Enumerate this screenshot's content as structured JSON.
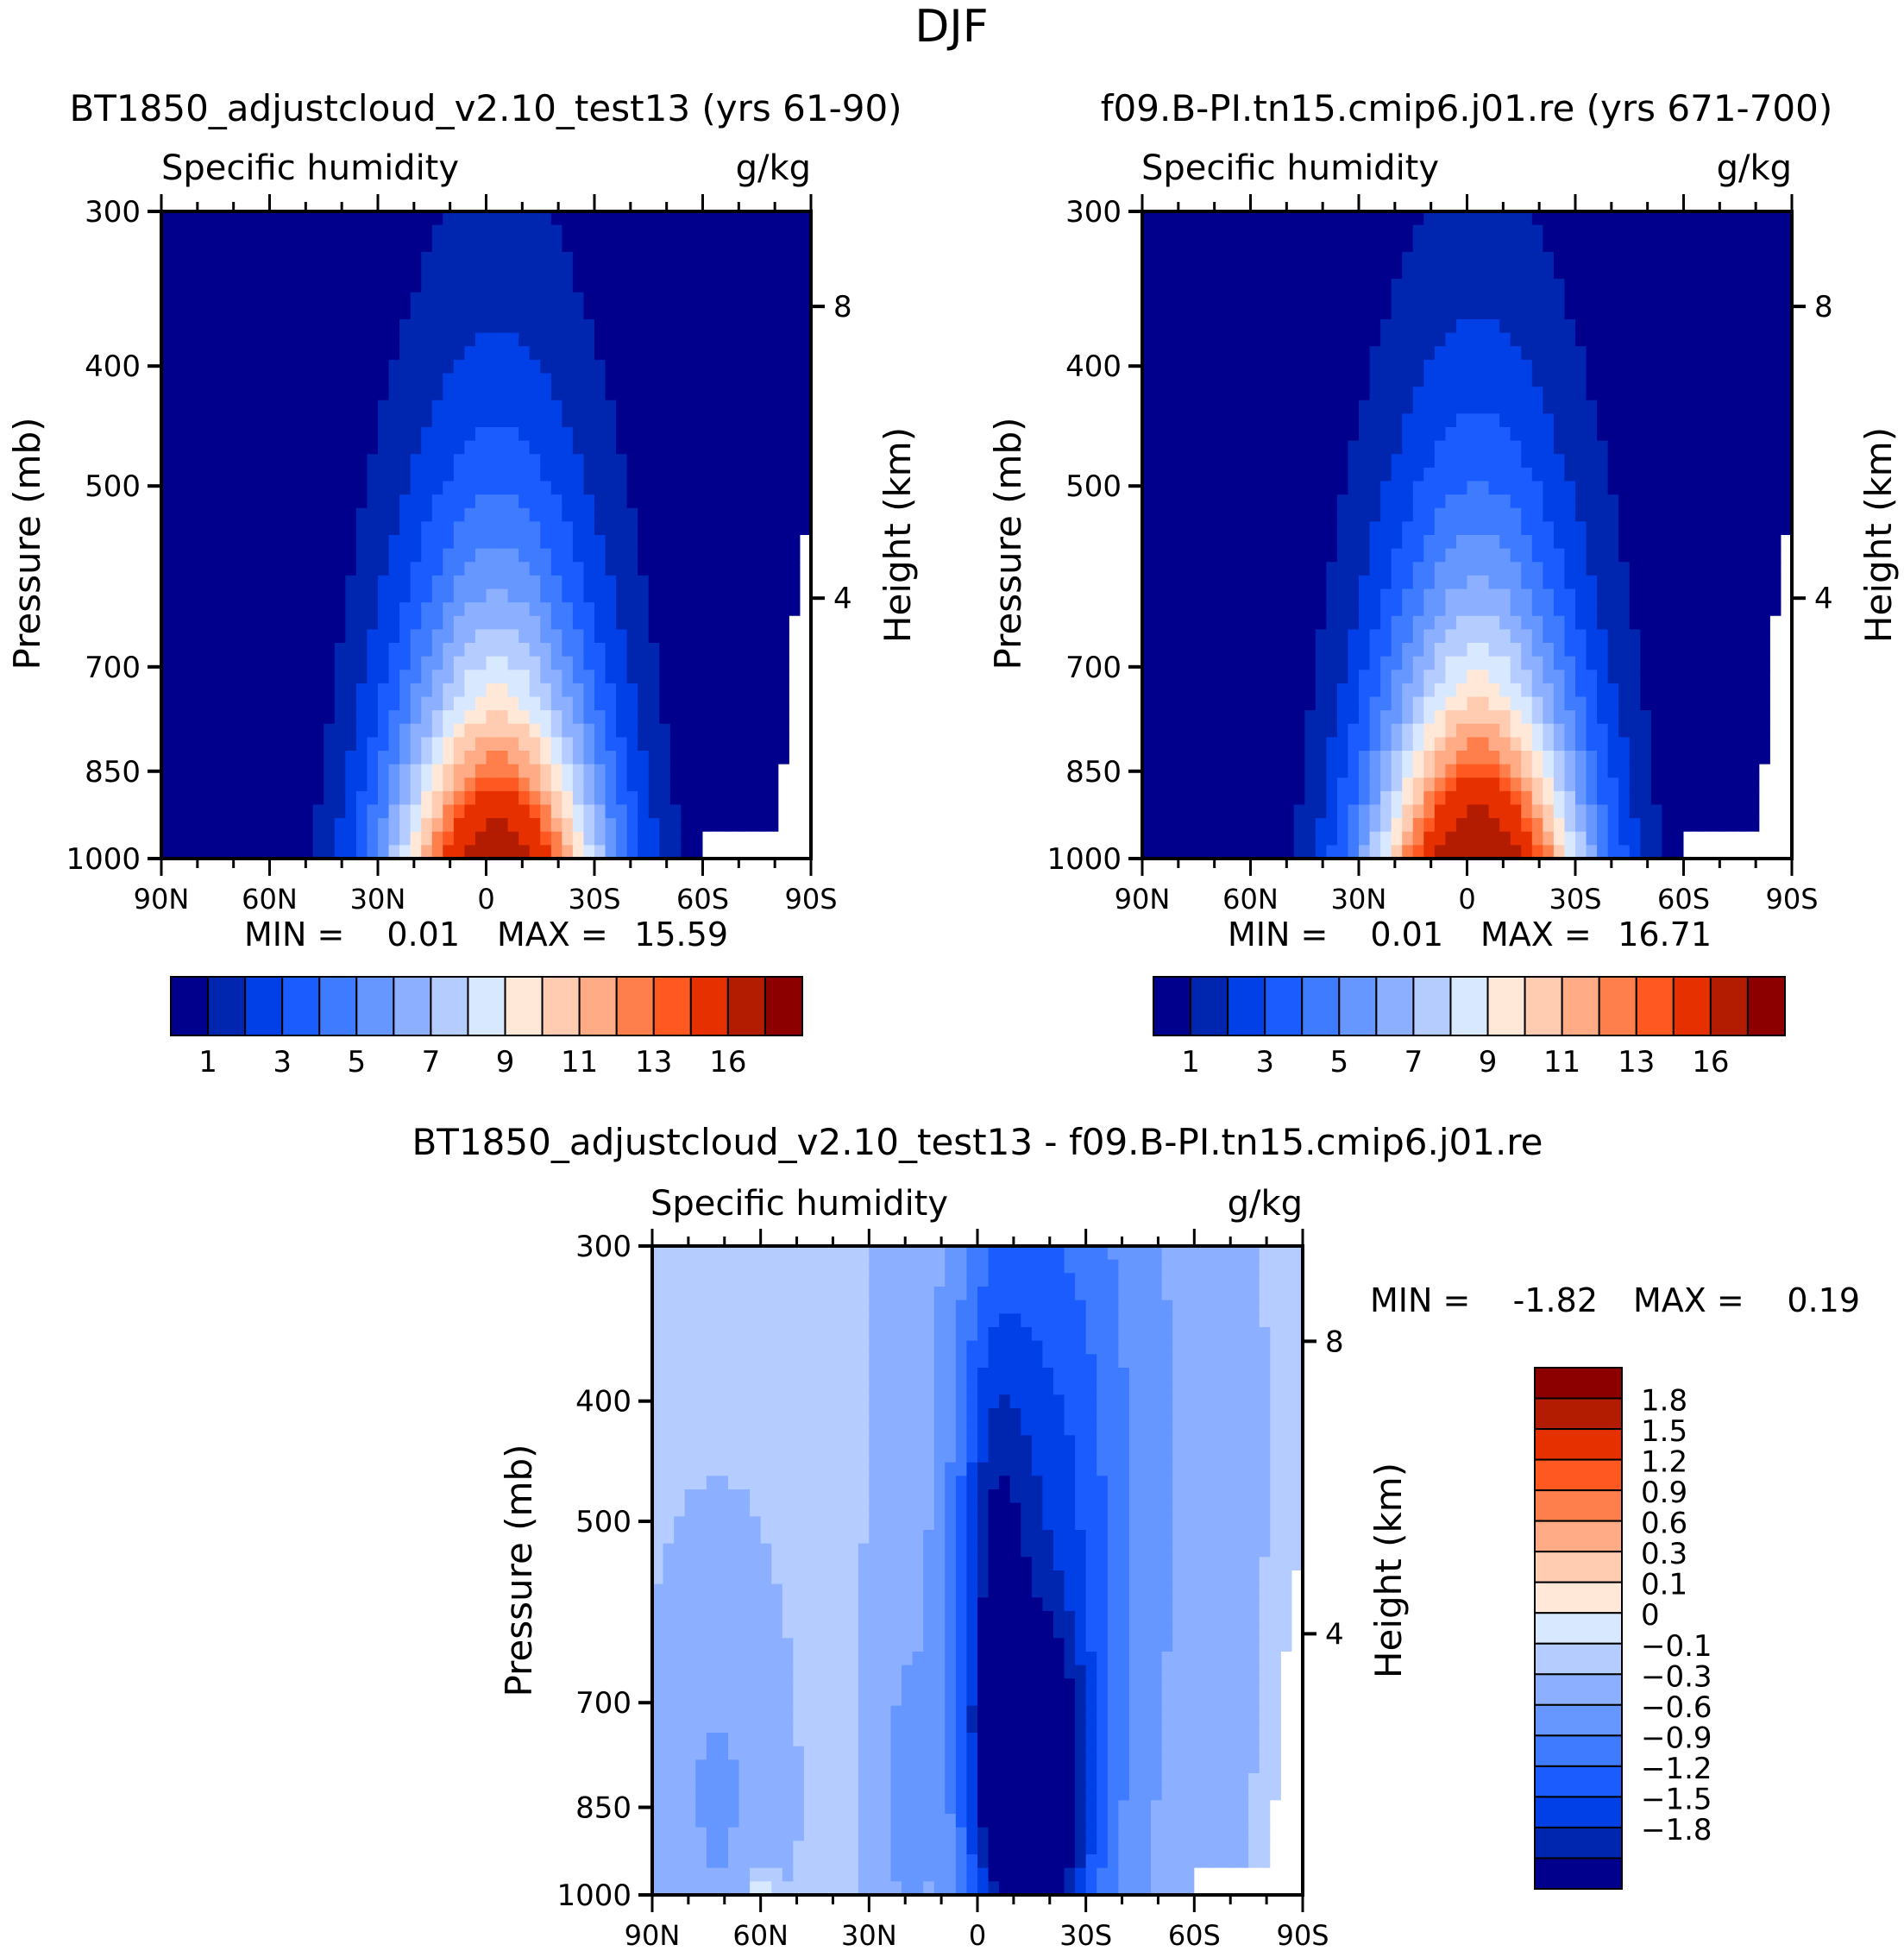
{
  "figure": {
    "title": "DJF"
  },
  "chart_data": [
    {
      "id": "left",
      "type": "contour",
      "case_title": "BT1850_adjustcloud_v2.10_test13 (yrs 61-90)",
      "variable": "Specific humidity",
      "units": "g/kg",
      "ylabel": "Pressure (mb)",
      "y2label": "Height (km)",
      "yticks": [
        "300",
        "400",
        "500",
        "700",
        "850",
        "1000"
      ],
      "y2ticks": [
        "8",
        "4"
      ],
      "xticks": [
        "90N",
        "60N",
        "30N",
        "0",
        "30S",
        "60S",
        "90S"
      ],
      "min_label": "MIN =",
      "min_value": "0.01",
      "max_label": "MAX =",
      "max_value": "15.59",
      "contour_levels": [
        0,
        1,
        2,
        3,
        4,
        5,
        6,
        7,
        8,
        9,
        10,
        11,
        12,
        13,
        14,
        16,
        99
      ],
      "colorbar_labels": [
        "1",
        "3",
        "5",
        "7",
        "9",
        "11",
        "13",
        "16"
      ],
      "peak_value": 15.59
    },
    {
      "id": "right",
      "type": "contour",
      "case_title": "f09.B-PI.tn15.cmip6.j01.re (yrs 671-700)",
      "variable": "Specific humidity",
      "units": "g/kg",
      "ylabel": "Pressure (mb)",
      "y2label": "Height (km)",
      "yticks": [
        "300",
        "400",
        "500",
        "700",
        "850",
        "1000"
      ],
      "y2ticks": [
        "8",
        "4"
      ],
      "xticks": [
        "90N",
        "60N",
        "30N",
        "0",
        "30S",
        "60S",
        "90S"
      ],
      "min_label": "MIN =",
      "min_value": "0.01",
      "max_label": "MAX =",
      "max_value": "16.71",
      "contour_levels": [
        0,
        1,
        2,
        3,
        4,
        5,
        6,
        7,
        8,
        9,
        10,
        11,
        12,
        13,
        14,
        16,
        99
      ],
      "colorbar_labels": [
        "1",
        "3",
        "5",
        "7",
        "9",
        "11",
        "13",
        "16"
      ],
      "peak_value": 16.71
    },
    {
      "id": "diff",
      "type": "contour",
      "case_title": "BT1850_adjustcloud_v2.10_test13 - f09.B-PI.tn15.cmip6.j01.re",
      "variable": "Specific humidity",
      "units": "g/kg",
      "ylabel": "Pressure (mb)",
      "y2label": "Height (km)",
      "yticks": [
        "300",
        "400",
        "500",
        "700",
        "850",
        "1000"
      ],
      "y2ticks": [
        "8",
        "4"
      ],
      "xticks": [
        "90N",
        "60N",
        "30N",
        "0",
        "30S",
        "60S",
        "90S"
      ],
      "min_label": "MIN =",
      "min_value": "-1.82",
      "max_label": "MAX =",
      "max_value": "0.19",
      "contour_levels": [
        -99,
        -1.8,
        -1.5,
        -1.2,
        -0.9,
        -0.6,
        -0.3,
        -0.1,
        0,
        0.1,
        0.3,
        0.6,
        0.9,
        1.2,
        1.5,
        1.8,
        99
      ],
      "colorbar_labels": [
        "1.8",
        "1.5",
        "1.2",
        "0.9",
        "0.6",
        "0.3",
        "0.1",
        "0",
        "-0.1",
        "-0.3",
        "-0.6",
        "-0.9",
        "-1.2",
        "-1.5",
        "-1.8"
      ]
    }
  ],
  "palette": [
    "#00008c",
    "#0026b0",
    "#0040e6",
    "#1a5cff",
    "#3f7bff",
    "#6696ff",
    "#8cb0ff",
    "#b4ccff",
    "#d8e8ff",
    "#ffe8d8",
    "#ffccb2",
    "#ffab86",
    "#ff7f4c",
    "#ff5820",
    "#e63000",
    "#b31c00",
    "#8c0000"
  ]
}
